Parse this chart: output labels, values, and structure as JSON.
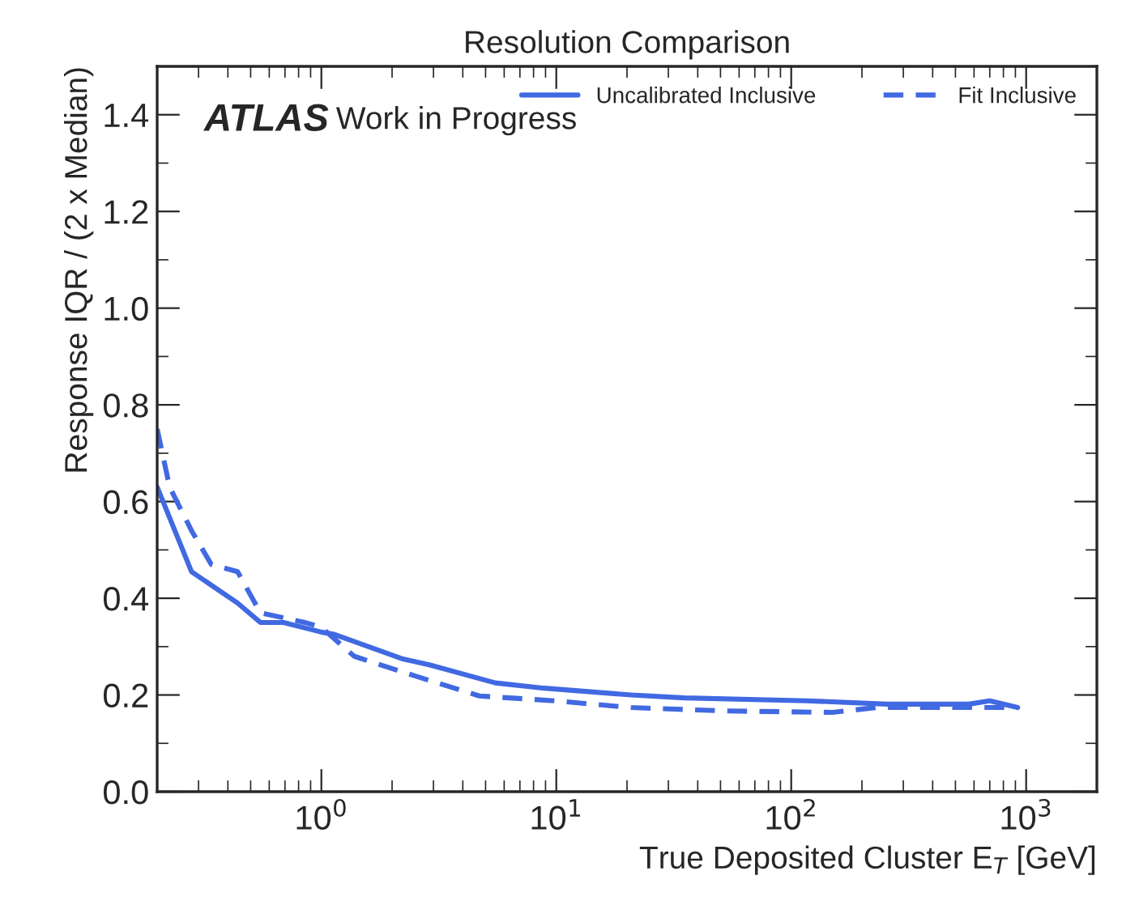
{
  "chart_data": {
    "type": "line",
    "title": "Resolution Comparison",
    "xlabel": "True Deposited Cluster E$_{T}$ [GeV]",
    "ylabel": "Response IQR / (2 x Median)",
    "annotations": [
      "ATLAS",
      "Work in Progress"
    ],
    "log": "x",
    "xlim": [
      0.2,
      2000
    ],
    "ylim": [
      0,
      1.5
    ],
    "xticks": [
      {
        "value": 1,
        "label": "10$^{0}$"
      },
      {
        "value": 10,
        "label": "10$^{1}$"
      },
      {
        "value": 100,
        "label": "10$^{2}$"
      },
      {
        "value": 1000,
        "label": "10$^{3}$"
      }
    ],
    "yticks": [
      {
        "value": 0,
        "label": "0.0"
      },
      0.2,
      0.4,
      0.6,
      0.8,
      {
        "value": 1,
        "label": "1.0"
      },
      1.2,
      1.4
    ],
    "grid": false,
    "legend": "top right",
    "series": [
      {
        "name": "Uncalibrated Inclusive",
        "color": "#4169e1",
        "line_style": "solid",
        "x": [
          0.2,
          0.28,
          0.44,
          0.55,
          0.69,
          1.0,
          1.14,
          2.2,
          2.9,
          5.5,
          8.9,
          20.8,
          35,
          116,
          256,
          570,
          700,
          920
        ],
        "values": [
          0.63,
          0.455,
          0.39,
          0.35,
          0.35,
          0.33,
          0.325,
          0.275,
          0.262,
          0.225,
          0.214,
          0.2,
          0.194,
          0.188,
          0.181,
          0.181,
          0.188,
          0.174
        ]
      },
      {
        "name": "Fit Inclusive",
        "color": "#4169e1",
        "line_style": "dashed",
        "x": [
          0.2,
          0.226,
          0.28,
          0.34,
          0.44,
          0.55,
          0.85,
          1.0,
          1.38,
          2.2,
          4.7,
          9.8,
          20.8,
          52,
          150,
          230,
          570,
          920
        ],
        "values": [
          0.75,
          0.63,
          0.54,
          0.47,
          0.455,
          0.37,
          0.35,
          0.34,
          0.28,
          0.248,
          0.198,
          0.188,
          0.174,
          0.167,
          0.164,
          0.174,
          0.174,
          0.174
        ]
      }
    ]
  }
}
